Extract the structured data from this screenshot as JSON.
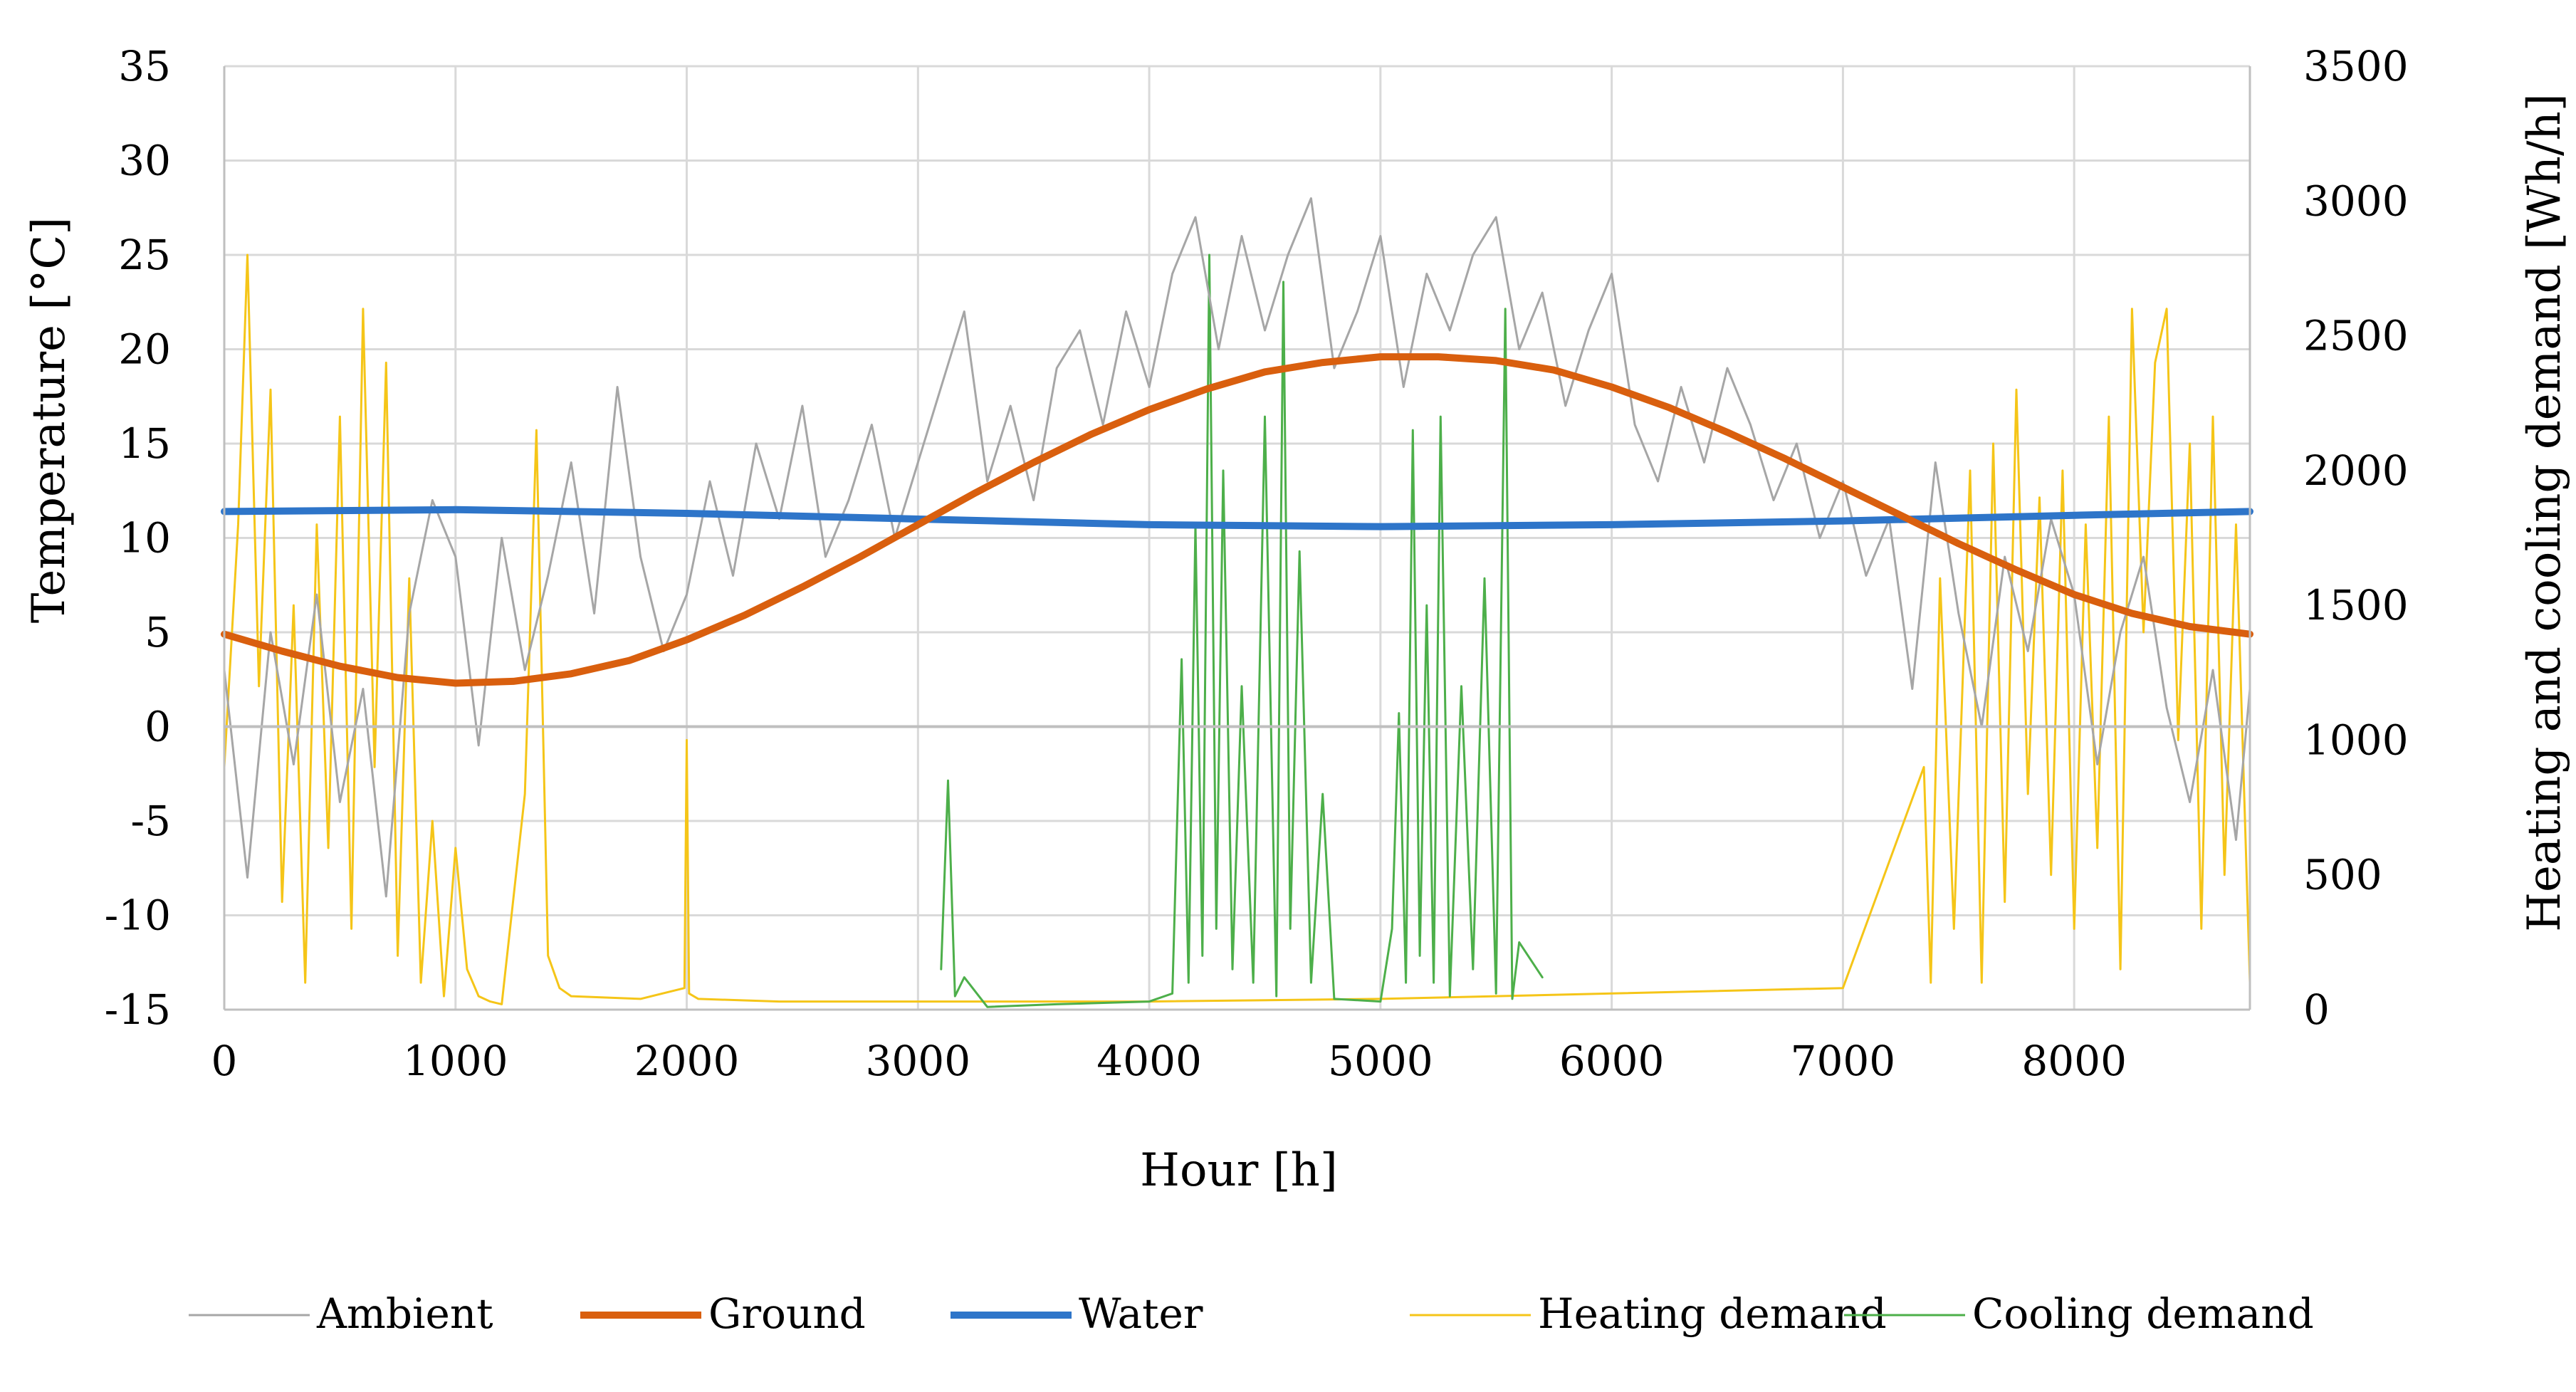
{
  "chart_data": {
    "type": "line",
    "xlabel": "Hour [h]",
    "ylabel_left": "Temperature [°C]",
    "ylabel_right": "Heating and cooling demand [Wh/h]",
    "xlim": [
      0,
      8760
    ],
    "ylim_left": [
      -15,
      35
    ],
    "ylim_right": [
      0,
      3500
    ],
    "x_ticks": [
      0,
      1000,
      2000,
      3000,
      4000,
      5000,
      6000,
      7000,
      8000
    ],
    "y_left_ticks": [
      -15,
      -10,
      -5,
      0,
      5,
      10,
      15,
      20,
      25,
      30,
      35
    ],
    "y_right_ticks": [
      0,
      500,
      1000,
      1500,
      2000,
      2500,
      3000,
      3500
    ],
    "grid": true,
    "legend_position": "bottom",
    "series": [
      {
        "name": "Ambient",
        "axis": "left",
        "color": "#a6a6a6",
        "x": [
          0,
          100,
          200,
          300,
          400,
          500,
          600,
          700,
          800,
          900,
          1000,
          1100,
          1200,
          1300,
          1400,
          1500,
          1600,
          1700,
          1800,
          1900,
          2000,
          2100,
          2200,
          2300,
          2400,
          2500,
          2600,
          2700,
          2800,
          2900,
          3000,
          3100,
          3200,
          3300,
          3400,
          3500,
          3600,
          3700,
          3800,
          3900,
          4000,
          4100,
          4200,
          4300,
          4400,
          4500,
          4600,
          4700,
          4800,
          4900,
          5000,
          5100,
          5200,
          5300,
          5400,
          5500,
          5600,
          5700,
          5800,
          5900,
          6000,
          6100,
          6200,
          6300,
          6400,
          6500,
          6600,
          6700,
          6800,
          6900,
          7000,
          7100,
          7200,
          7300,
          7400,
          7500,
          7600,
          7700,
          7800,
          7900,
          8000,
          8100,
          8200,
          8300,
          8400,
          8500,
          8600,
          8700,
          8760
        ],
        "y": [
          3,
          -8,
          5,
          -2,
          7,
          -4,
          2,
          -9,
          6,
          12,
          9,
          -1,
          10,
          3,
          8,
          14,
          6,
          18,
          9,
          4,
          7,
          13,
          8,
          15,
          11,
          17,
          9,
          12,
          16,
          10,
          14,
          18,
          22,
          13,
          17,
          12,
          19,
          21,
          16,
          22,
          18,
          24,
          27,
          20,
          26,
          21,
          25,
          28,
          19,
          22,
          26,
          18,
          24,
          21,
          25,
          27,
          20,
          23,
          17,
          21,
          24,
          16,
          13,
          18,
          14,
          19,
          16,
          12,
          15,
          10,
          13,
          8,
          11,
          2,
          14,
          6,
          0,
          9,
          4,
          11,
          7,
          -2,
          5,
          9,
          1,
          -4,
          3,
          -6,
          2
        ]
      },
      {
        "name": "Ground",
        "axis": "left",
        "color": "#d95f0e",
        "x": [
          0,
          250,
          500,
          750,
          1000,
          1250,
          1500,
          1750,
          2000,
          2250,
          2500,
          2750,
          3000,
          3250,
          3500,
          3750,
          4000,
          4250,
          4500,
          4750,
          5000,
          5250,
          5500,
          5750,
          6000,
          6250,
          6500,
          6750,
          7000,
          7250,
          7500,
          7750,
          8000,
          8250,
          8500,
          8760
        ],
        "y": [
          4.9,
          4.0,
          3.2,
          2.6,
          2.3,
          2.4,
          2.8,
          3.5,
          4.6,
          5.9,
          7.4,
          9.0,
          10.7,
          12.4,
          14.0,
          15.5,
          16.8,
          17.9,
          18.8,
          19.3,
          19.6,
          19.6,
          19.4,
          18.9,
          18.0,
          16.9,
          15.6,
          14.2,
          12.7,
          11.2,
          9.7,
          8.3,
          7.0,
          6.0,
          5.3,
          4.9
        ]
      },
      {
        "name": "Water",
        "axis": "left",
        "color": "#2e75c9",
        "x": [
          0,
          1000,
          2000,
          3000,
          4000,
          5000,
          6000,
          7000,
          8000,
          8760
        ],
        "y": [
          11.4,
          11.5,
          11.3,
          11.0,
          10.7,
          10.6,
          10.7,
          10.9,
          11.2,
          11.4
        ]
      },
      {
        "name": "Heating demand",
        "axis": "right",
        "color": "#f5c518",
        "x": [
          0,
          60,
          100,
          150,
          200,
          250,
          300,
          350,
          400,
          450,
          500,
          550,
          600,
          650,
          700,
          750,
          800,
          850,
          900,
          950,
          1000,
          1050,
          1100,
          1150,
          1200,
          1300,
          1350,
          1400,
          1450,
          1500,
          1800,
          1990,
          2000,
          2010,
          2050,
          2400,
          3000,
          4000,
          5000,
          6000,
          7000,
          7350,
          7380,
          7420,
          7480,
          7550,
          7600,
          7650,
          7700,
          7750,
          7800,
          7850,
          7900,
          7950,
          8000,
          8050,
          8100,
          8150,
          8200,
          8250,
          8300,
          8350,
          8400,
          8450,
          8500,
          8550,
          8600,
          8650,
          8700,
          8760
        ],
        "y": [
          900,
          1800,
          2800,
          1200,
          2300,
          400,
          1500,
          100,
          1800,
          600,
          2200,
          300,
          2600,
          900,
          2400,
          200,
          1600,
          100,
          700,
          50,
          600,
          150,
          50,
          30,
          20,
          800,
          2150,
          200,
          80,
          50,
          40,
          80,
          1000,
          60,
          40,
          30,
          30,
          30,
          40,
          60,
          80,
          900,
          100,
          1600,
          300,
          2000,
          100,
          2100,
          400,
          2300,
          800,
          1900,
          500,
          2000,
          300,
          1800,
          600,
          2200,
          150,
          2600,
          1400,
          2400,
          2600,
          1000,
          2100,
          300,
          2200,
          500,
          1800,
          100
        ]
      },
      {
        "name": "Cooling demand",
        "axis": "right",
        "color": "#4daf4a",
        "x": [
          3100,
          3130,
          3160,
          3200,
          3300,
          3600,
          4000,
          4100,
          4140,
          4170,
          4200,
          4230,
          4260,
          4290,
          4320,
          4360,
          4400,
          4450,
          4500,
          4550,
          4580,
          4610,
          4650,
          4700,
          4750,
          4800,
          5000,
          5050,
          5080,
          5110,
          5140,
          5170,
          5200,
          5230,
          5260,
          5300,
          5350,
          5400,
          5450,
          5500,
          5540,
          5570,
          5600,
          5700
        ],
        "y": [
          150,
          850,
          50,
          120,
          10,
          20,
          30,
          60,
          1300,
          100,
          1800,
          200,
          2800,
          300,
          2000,
          150,
          1200,
          100,
          2200,
          50,
          2700,
          300,
          1700,
          100,
          800,
          40,
          30,
          300,
          1100,
          100,
          2150,
          200,
          1500,
          100,
          2200,
          50,
          1200,
          150,
          1600,
          60,
          2600,
          40,
          250,
          120
        ]
      }
    ]
  }
}
